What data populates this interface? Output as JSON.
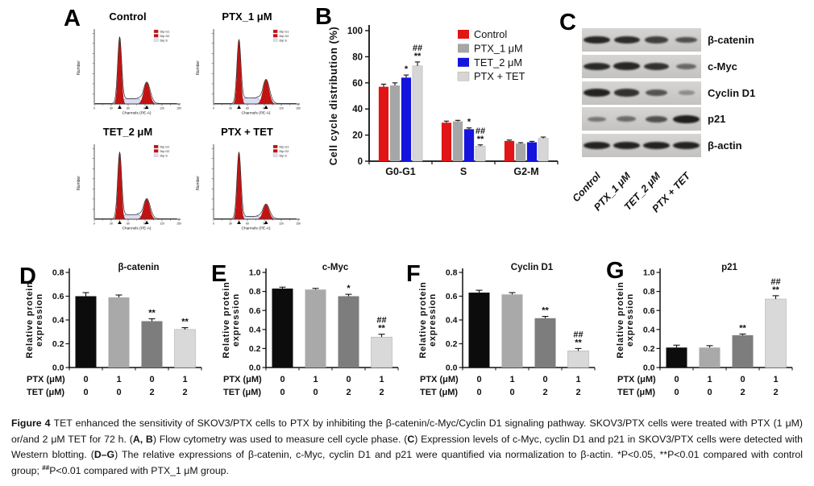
{
  "figure": {
    "panel_labels": {
      "A": "A",
      "B": "B",
      "C": "C",
      "D": "D",
      "E": "E",
      "F": "F",
      "G": "G"
    },
    "caption_segments": [
      {
        "text": "Figure 4 ",
        "bold": true
      },
      {
        "text": "TET enhanced the sensitivity of SKOV3/PTX cells to PTX by inhibiting the β-catenin/c-Myc/Cyclin D1 signaling pathway. SKOV3/PTX cells were treated with PTX (1 μM) or/and 2 μM TET for 72 h. ("
      },
      {
        "text": "A, B",
        "bold": true
      },
      {
        "text": ") Flow cytometry was used to measure cell cycle phase. ("
      },
      {
        "text": "C",
        "bold": true
      },
      {
        "text": ") Expression levels of c-Myc, cyclin D1 and p21 in SKOV3/PTX cells were detected with Western blotting. ("
      },
      {
        "text": "D–G",
        "bold": true
      },
      {
        "text": ") The relative expressions of β-catenin, c-Myc, cyclin D1 and p21 were quantified via normalization to β-actin. *P<0.05, **P<0.01 compared with control group; "
      },
      {
        "text": "##",
        "sup": true
      },
      {
        "text": "P<0.01 compared with PTX_1 μM group."
      }
    ]
  },
  "panel_A": {
    "plots": [
      {
        "title": "Control",
        "g1": 1.0,
        "g2": 0.32,
        "s": 0.07
      },
      {
        "title": "PTX_1 μM",
        "g1": 0.96,
        "g2": 0.36,
        "s": 0.08
      },
      {
        "title": "TET_2 μM",
        "g1": 1.0,
        "g2": 0.3,
        "s": 0.06
      },
      {
        "title": "PTX + TET",
        "g1": 1.0,
        "g2": 0.22,
        "s": 0.035
      }
    ],
    "legend": [
      "Dip G1",
      "Dip G2",
      "Dip S"
    ],
    "legend_colors": [
      "#c31212",
      "#c31212",
      "#dcdcf2"
    ],
    "xlabel": "Channels (PE-A)",
    "ylabel": "Number",
    "x_ticks": [
      "0",
      "30",
      "60",
      "90",
      "120",
      "150"
    ]
  },
  "panel_C": {
    "rows": [
      {
        "protein": "β-catenin",
        "intensities": [
          0.92,
          0.88,
          0.74,
          0.62
        ]
      },
      {
        "protein": "c-Myc",
        "intensities": [
          0.9,
          0.92,
          0.85,
          0.45
        ]
      },
      {
        "protein": "Cyclin D1",
        "intensities": [
          0.95,
          0.85,
          0.6,
          0.18
        ]
      },
      {
        "protein": "p21",
        "intensities": [
          0.35,
          0.42,
          0.62,
          0.97
        ]
      },
      {
        "protein": "β-actin",
        "intensities": [
          0.95,
          0.95,
          0.95,
          0.95
        ]
      }
    ],
    "lanes": [
      "Control",
      "PTX_1 μM",
      "TET_2 μM",
      "PTX + TET"
    ]
  },
  "chart_data": [
    {
      "id": "B",
      "type": "bar",
      "title": "",
      "ylabel": "Cell cycle distribution (%)",
      "categories": [
        "G0-G1",
        "S",
        "G2-M"
      ],
      "series": [
        {
          "name": "Control",
          "color": "#e11515",
          "values": [
            57,
            29.5,
            15.5
          ],
          "errors": [
            2,
            1.2,
            0.7
          ]
        },
        {
          "name": "PTX_1 μM",
          "color": "#a6a6a6",
          "values": [
            58,
            30.5,
            13.5
          ],
          "errors": [
            2,
            0.8,
            0.7
          ]
        },
        {
          "name": "TET_2 μM",
          "color": "#1414dd",
          "values": [
            64,
            24.5,
            14.5
          ],
          "errors": [
            2,
            1,
            0.7
          ]
        },
        {
          "name": "PTX + TET",
          "color": "#d6d6d6",
          "values": [
            73,
            11.5,
            17.5
          ],
          "errors": [
            3,
            1,
            1
          ]
        }
      ],
      "annotations": [
        [
          "",
          "",
          "*",
          "##|**"
        ],
        [
          "",
          "",
          "*",
          "##|**"
        ],
        [
          "",
          "",
          "",
          ""
        ]
      ],
      "ylim": [
        0,
        100
      ],
      "yticks": [
        0,
        20,
        40,
        60,
        80,
        100
      ],
      "ytick_labels": [
        "0",
        "20",
        "40",
        "60",
        "80",
        "100"
      ],
      "grid": false,
      "legend_position": "top-right"
    },
    {
      "id": "D",
      "type": "bar",
      "title": "β-catenin",
      "ylabel": [
        "Relative protein",
        "expression"
      ],
      "values": [
        0.6,
        0.59,
        0.39,
        0.32
      ],
      "errors": [
        0.03,
        0.02,
        0.02,
        0.015
      ],
      "bar_colors": [
        "#0c0c0c",
        "#a9a9a9",
        "#7d7d7d",
        "#d9d9d9"
      ],
      "annotations": [
        "",
        "",
        "**",
        "**"
      ],
      "ylim": [
        0,
        0.8
      ],
      "yticks": [
        0,
        0.2,
        0.4,
        0.6,
        0.8
      ],
      "ytick_labels": [
        "0.0",
        "0.2",
        "0.4",
        "0.6",
        "0.8"
      ],
      "x_rows": [
        {
          "label": "PTX (μM)",
          "values": [
            "0",
            "1",
            "0",
            "1"
          ]
        },
        {
          "label": "TET (μM)",
          "values": [
            "0",
            "0",
            "2",
            "2"
          ]
        }
      ]
    },
    {
      "id": "E",
      "type": "bar",
      "title": "c-Myc",
      "ylabel": [
        "Relative protein",
        "expression"
      ],
      "values": [
        0.83,
        0.82,
        0.75,
        0.32
      ],
      "errors": [
        0.015,
        0.012,
        0.02,
        0.03
      ],
      "bar_colors": [
        "#0c0c0c",
        "#a9a9a9",
        "#7d7d7d",
        "#d9d9d9"
      ],
      "annotations": [
        "",
        "",
        "*",
        "##|**"
      ],
      "ylim": [
        0,
        1.0
      ],
      "yticks": [
        0,
        0.2,
        0.4,
        0.6,
        0.8,
        1.0
      ],
      "ytick_labels": [
        "0.0",
        "0.2",
        "0.4",
        "0.6",
        "0.8",
        "1.0"
      ],
      "x_rows": [
        {
          "label": "PTX (μM)",
          "values": [
            "0",
            "1",
            "0",
            "1"
          ]
        },
        {
          "label": "TET (μM)",
          "values": [
            "0",
            "0",
            "2",
            "2"
          ]
        }
      ]
    },
    {
      "id": "F",
      "type": "bar",
      "title": "Cyclin D1",
      "ylabel": [
        "Relative protein",
        "expression"
      ],
      "values": [
        0.63,
        0.615,
        0.415,
        0.14
      ],
      "errors": [
        0.02,
        0.015,
        0.015,
        0.02
      ],
      "bar_colors": [
        "#0c0c0c",
        "#a9a9a9",
        "#7d7d7d",
        "#d9d9d9"
      ],
      "annotations": [
        "",
        "",
        "**",
        "##|**"
      ],
      "ylim": [
        0,
        0.8
      ],
      "yticks": [
        0,
        0.2,
        0.4,
        0.6,
        0.8
      ],
      "ytick_labels": [
        "0.0",
        "0.2",
        "0.4",
        "0.6",
        "0.8"
      ],
      "x_rows": [
        {
          "label": "PTX (μM)",
          "values": [
            "0",
            "1",
            "0",
            "1"
          ]
        },
        {
          "label": "TET (μM)",
          "values": [
            "0",
            "0",
            "2",
            "2"
          ]
        }
      ]
    },
    {
      "id": "G",
      "type": "bar",
      "title": "p21",
      "ylabel": [
        "Relative protein",
        "expression"
      ],
      "values": [
        0.21,
        0.21,
        0.34,
        0.72
      ],
      "errors": [
        0.025,
        0.02,
        0.012,
        0.035
      ],
      "bar_colors": [
        "#0c0c0c",
        "#a9a9a9",
        "#7d7d7d",
        "#d9d9d9"
      ],
      "annotations": [
        "",
        "",
        "**",
        "##|**"
      ],
      "ylim": [
        0,
        1.0
      ],
      "yticks": [
        0,
        0.2,
        0.4,
        0.6,
        0.8,
        1.0
      ],
      "ytick_labels": [
        "0.0",
        "0.2",
        "0.4",
        "0.6",
        "0.8",
        "1.0"
      ],
      "x_rows": [
        {
          "label": "PTX (μM)",
          "values": [
            "0",
            "1",
            "0",
            "1"
          ]
        },
        {
          "label": "TET (μM)",
          "values": [
            "0",
            "0",
            "2",
            "2"
          ]
        }
      ]
    }
  ]
}
